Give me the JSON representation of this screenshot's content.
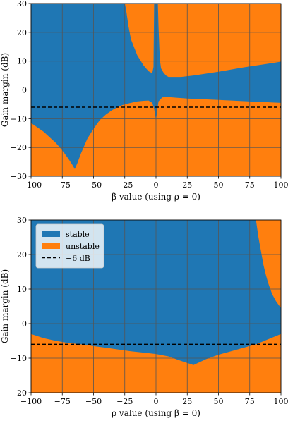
{
  "colors": {
    "stable": "#1f77b4",
    "unstable": "#ff7f0e",
    "threshold": "#000000",
    "grid": "#555555"
  },
  "chart_data": [
    {
      "type": "area",
      "xlabel": "β value (using ρ = 0)",
      "ylabel": "Gain margin (dB)",
      "xlim": [
        -100,
        100
      ],
      "ylim": [
        -30,
        30
      ],
      "xticks": [
        "−100",
        "−75",
        "−50",
        "−25",
        "0",
        "25",
        "50",
        "75",
        "100"
      ],
      "yticks": [
        "−30",
        "−20",
        "−10",
        "0",
        "10",
        "20",
        "30"
      ],
      "grid": true,
      "threshold": -6,
      "series": [
        {
          "name": "stable",
          "lower": [
            [
              -100,
              -11.5
            ],
            [
              -95,
              -13
            ],
            [
              -90,
              -14.5
            ],
            [
              -85,
              -16.5
            ],
            [
              -80,
              -18.5
            ],
            [
              -75,
              -21
            ],
            [
              -70,
              -24
            ],
            [
              -67,
              -26
            ],
            [
              -65,
              -27.5
            ],
            [
              -63,
              -25.5
            ],
            [
              -60,
              -22
            ],
            [
              -55,
              -17
            ],
            [
              -50,
              -13.5
            ],
            [
              -45,
              -10.5
            ],
            [
              -40,
              -8.5
            ],
            [
              -35,
              -7
            ],
            [
              -30,
              -5.8
            ],
            [
              -25,
              -5
            ],
            [
              -20,
              -4.5
            ],
            [
              -15,
              -4
            ],
            [
              -10,
              -3.8
            ],
            [
              -6,
              -3.7
            ],
            [
              -3,
              -4.5
            ],
            [
              -1.5,
              -6.5
            ],
            [
              0,
              -10.5
            ],
            [
              1,
              -7
            ],
            [
              2,
              -4
            ],
            [
              5,
              -2.6
            ],
            [
              10,
              -2.5
            ],
            [
              25,
              -3
            ],
            [
              50,
              -3.5
            ],
            [
              75,
              -4
            ],
            [
              100,
              -4.5
            ]
          ],
          "upper": [
            [
              -100,
              30
            ],
            [
              -25,
              30
            ],
            [
              -24,
              28
            ],
            [
              -22,
              22
            ],
            [
              -20,
              17.5
            ],
            [
              -15,
              12
            ],
            [
              -10,
              8.5
            ],
            [
              -6,
              6.5
            ],
            [
              -3,
              5.8
            ],
            [
              -2,
              8
            ],
            [
              -1.5,
              30
            ],
            [
              1.5,
              30
            ],
            [
              2,
              22
            ],
            [
              3,
              11
            ],
            [
              4,
              7.5
            ],
            [
              6,
              6
            ],
            [
              8,
              5
            ],
            [
              10,
              4.5
            ],
            [
              20,
              4.5
            ],
            [
              30,
              5
            ],
            [
              50,
              6.3
            ],
            [
              70,
              7.8
            ],
            [
              85,
              8.8
            ],
            [
              100,
              9.8
            ]
          ]
        }
      ]
    },
    {
      "type": "area",
      "xlabel": "ρ value (using β = 0)",
      "ylabel": "Gain margin (dB)",
      "xlim": [
        -100,
        100
      ],
      "ylim": [
        -20,
        30
      ],
      "xticks": [
        "−100",
        "−75",
        "−50",
        "−25",
        "0",
        "25",
        "50",
        "75",
        "100"
      ],
      "yticks": [
        "−20",
        "−10",
        "0",
        "10",
        "20",
        "30"
      ],
      "grid": true,
      "threshold": -6,
      "legend": {
        "placement": "top-left",
        "entries": [
          {
            "label": "stable",
            "kind": "patch",
            "color": "#1f77b4"
          },
          {
            "label": "unstable",
            "kind": "patch",
            "color": "#ff7f0e"
          },
          {
            "label": "−6 dB",
            "kind": "dash",
            "color": "#000000"
          }
        ]
      },
      "series": [
        {
          "name": "stable",
          "lower": [
            [
              -100,
              -3
            ],
            [
              -90,
              -4.2
            ],
            [
              -80,
              -5
            ],
            [
              -70,
              -5.6
            ],
            [
              -60,
              -6
            ],
            [
              -50,
              -6.5
            ],
            [
              -40,
              -7
            ],
            [
              -30,
              -7.5
            ],
            [
              -20,
              -8
            ],
            [
              -10,
              -8.4
            ],
            [
              0,
              -8.8
            ],
            [
              10,
              -9.5
            ],
            [
              20,
              -10.8
            ],
            [
              30,
              -12
            ],
            [
              40,
              -10.3
            ],
            [
              50,
              -9
            ],
            [
              60,
              -8
            ],
            [
              70,
              -7
            ],
            [
              80,
              -6
            ],
            [
              90,
              -4.5
            ],
            [
              100,
              -3
            ]
          ],
          "upper": [
            [
              -100,
              30
            ],
            [
              80,
              30
            ],
            [
              82,
              25
            ],
            [
              84,
              21
            ],
            [
              86,
              17
            ],
            [
              88,
              14
            ],
            [
              90,
              11.5
            ],
            [
              93,
              8.5
            ],
            [
              96,
              6.5
            ],
            [
              100,
              4.5
            ]
          ]
        }
      ]
    }
  ]
}
